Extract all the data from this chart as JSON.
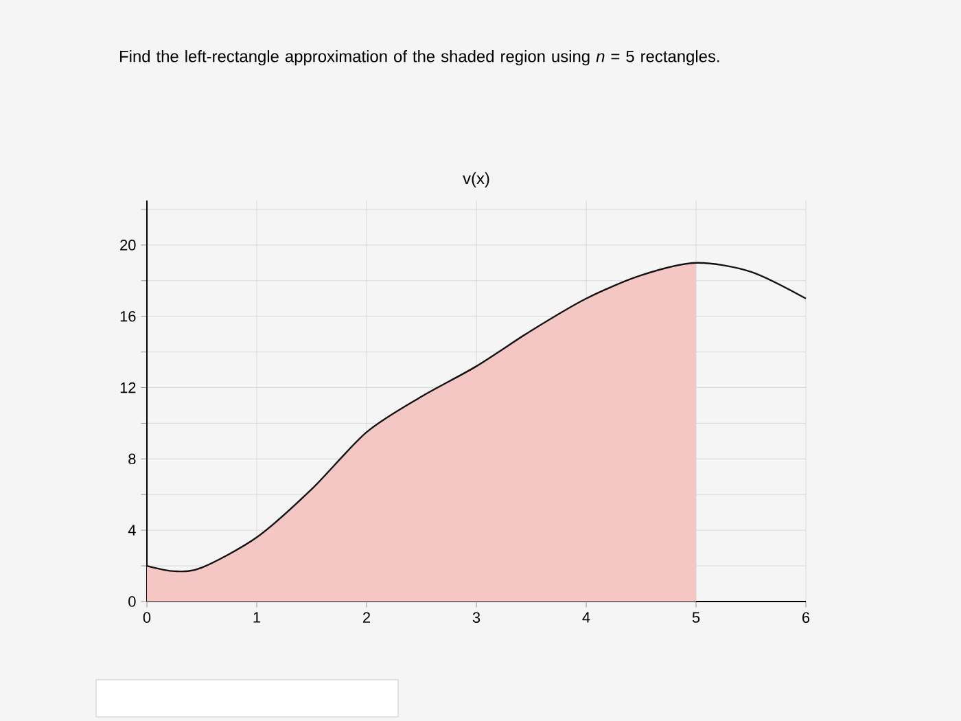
{
  "chart_data": {
    "type": "line",
    "title": "v(x)",
    "annotations": [
      "Find the left-rectangle approximation of the shaded region using *n* = 5 rectangles."
    ],
    "x": [
      0,
      0.25,
      0.5,
      1,
      1.5,
      2,
      2.5,
      3,
      3.5,
      4,
      4.5,
      5,
      5.5,
      6
    ],
    "series": [
      {
        "type": "area",
        "color": "#f4c6c4",
        "x": [
          0,
          0.25,
          0.5,
          1,
          1.5,
          2,
          2.5,
          3,
          3.5,
          4,
          4.5,
          5
        ],
        "values": [
          2,
          1.7,
          1.9,
          3.6,
          6.3,
          9.5,
          11.5,
          13.2,
          15.2,
          17,
          18.3,
          19
        ]
      },
      {
        "color": "#111111",
        "values": [
          2,
          1.7,
          1.9,
          3.6,
          6.3,
          9.5,
          11.5,
          13.2,
          15.2,
          17,
          18.3,
          19,
          18.5,
          17
        ]
      }
    ],
    "xlim": [
      0,
      6
    ],
    "ylim": [
      0,
      22.5
    ],
    "xticks": [
      0,
      1,
      2,
      3,
      4,
      5,
      6
    ],
    "yticks": [
      0,
      {
        "value": 2,
        "label": null
      },
      4,
      {
        "value": 6,
        "label": null
      },
      8,
      {
        "value": 10,
        "label": null
      },
      12,
      {
        "value": 14,
        "label": null
      },
      16,
      {
        "value": 18,
        "label": null
      },
      20,
      {
        "value": 22,
        "label": null
      }
    ],
    "grid": true,
    "marker": "none",
    "line_style": "solid"
  }
}
